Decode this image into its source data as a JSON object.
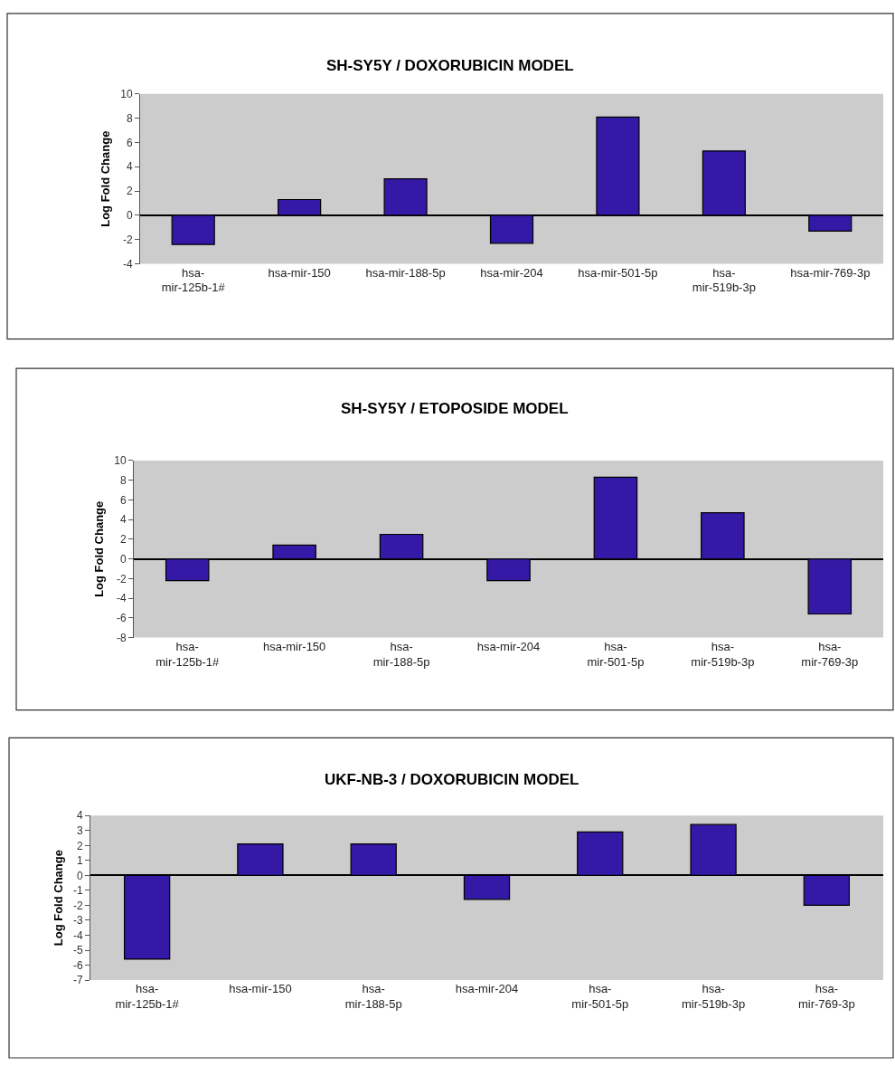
{
  "chart_data": [
    {
      "type": "bar",
      "title": "SH-SY5Y / DOXORUBICIN MODEL",
      "ylabel": "Log Fold Change",
      "categories": [
        "hsa-\nmir-125b-1#",
        "hsa-mir-150",
        "hsa-mir-188-5p",
        "hsa-mir-204",
        "hsa-mir-501-5p",
        "hsa-\nmir-519b-3p",
        "hsa-mir-769-3p"
      ],
      "values": [
        -2.4,
        1.3,
        3.0,
        -2.3,
        8.1,
        5.3,
        -1.3
      ],
      "color": "#3319a6",
      "ylim": [
        -4,
        10
      ],
      "yticks": [
        -4,
        -2,
        0,
        2,
        4,
        6,
        8,
        10
      ]
    },
    {
      "type": "bar",
      "title": "SH-SY5Y / ETOPOSIDE MODEL",
      "ylabel": "Log Fold Change",
      "categories": [
        "hsa-\nmir-125b-1#",
        "hsa-mir-150",
        "hsa-\nmir-188-5p",
        "hsa-mir-204",
        "hsa-\nmir-501-5p",
        "hsa-\nmir-519b-3p",
        "hsa-\nmir-769-3p"
      ],
      "values": [
        -2.2,
        1.4,
        2.5,
        -2.2,
        8.3,
        4.7,
        -5.6
      ],
      "color": "#3319a6",
      "ylim": [
        -8,
        10
      ],
      "yticks": [
        -8,
        -6,
        -4,
        -2,
        0,
        2,
        4,
        6,
        8,
        10
      ]
    },
    {
      "type": "bar",
      "title": "UKF-NB-3 / DOXORUBICIN MODEL",
      "ylabel": "Log Fold Change",
      "categories": [
        "hsa-\nmir-125b-1#",
        "hsa-mir-150",
        "hsa-\nmir-188-5p",
        "hsa-mir-204",
        "hsa-\nmir-501-5p",
        "hsa-\nmir-519b-3p",
        "hsa-\nmir-769-3p"
      ],
      "values": [
        -5.6,
        2.1,
        2.1,
        -1.6,
        2.9,
        3.4,
        -2.0
      ],
      "color": "#3319a6",
      "ylim": [
        -7,
        4
      ],
      "yticks": [
        -7,
        -6,
        -5,
        -4,
        -3,
        -2,
        -1,
        0,
        1,
        2,
        3,
        4
      ]
    }
  ]
}
